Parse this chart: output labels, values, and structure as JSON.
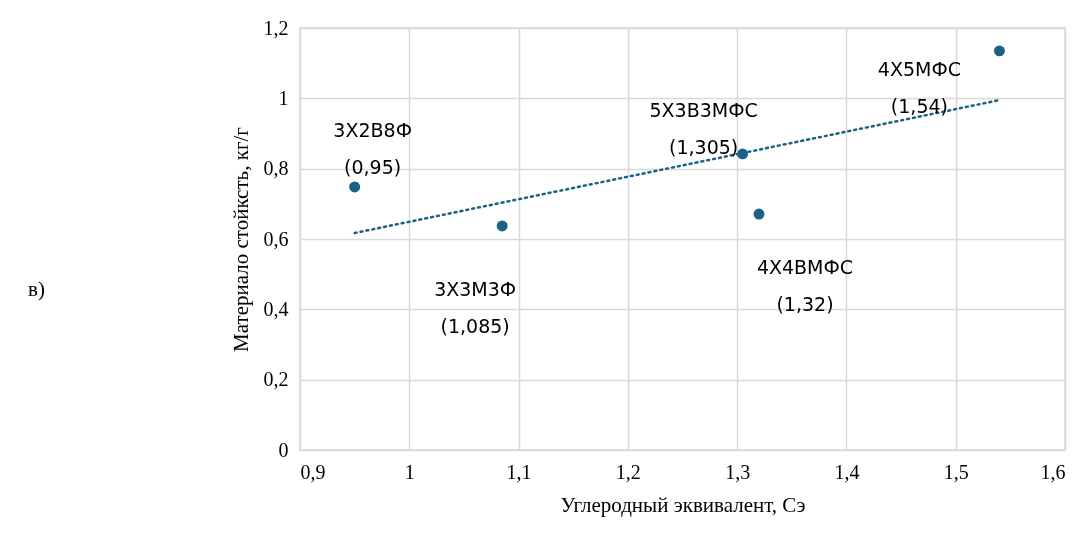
{
  "chart_data": {
    "type": "scatter",
    "xlabel": "Углеродный эквивалент, Сэ",
    "ylabel": "Материало стойксть, кг/г",
    "series": [
      {
        "color": "#1b6187",
        "marker": "circle",
        "x": [
          0.95,
          1.085,
          1.305,
          1.32,
          1.54
        ],
        "values": [
          0.748,
          0.637,
          0.842,
          0.671,
          1.135
        ]
      },
      {
        "type": "line",
        "color": "#1b6187",
        "line_style": "dotted",
        "x": [
          0.95,
          1.54
        ],
        "values": [
          0.617,
          0.995
        ]
      }
    ],
    "annotations": [
      {
        "text": "3Х2В8Ф\n(0,95)",
        "x": 0.95,
        "y": 0.748
      },
      {
        "text": "3Х3М3Ф\n(1,085)",
        "x": 1.085,
        "y": 0.637
      },
      {
        "text": "5Х3В3МФС\n(1,305)",
        "x": 1.305,
        "y": 0.842
      },
      {
        "text": "4Х4ВМФС\n(1,32)",
        "x": 1.32,
        "y": 0.671
      },
      {
        "text": "4Х5МФС\n(1,54)",
        "x": 1.54,
        "y": 1.135
      },
      "в)"
    ],
    "xlim": [
      0.9,
      1.6
    ],
    "xticks": [
      {
        "value": 0.9,
        "label": "0,9"
      },
      1,
      {
        "value": 1.1,
        "label": "1,1"
      },
      {
        "value": 1.2,
        "label": "1,2"
      },
      {
        "value": 1.3,
        "label": "1,3"
      },
      {
        "value": 1.4,
        "label": "1,4"
      },
      {
        "value": 1.5,
        "label": "1,5"
      },
      {
        "value": 1.6,
        "label": "1,6"
      }
    ],
    "ylim": [
      0,
      1.2
    ],
    "yticks": [
      0,
      {
        "value": 0.2,
        "label": "0,2"
      },
      {
        "value": 0.4,
        "label": "0,4"
      },
      {
        "value": 0.6,
        "label": "0,6"
      },
      {
        "value": 0.8,
        "label": "0,8"
      },
      1,
      {
        "value": 1.2,
        "label": "1,2"
      }
    ],
    "grid": true
  }
}
